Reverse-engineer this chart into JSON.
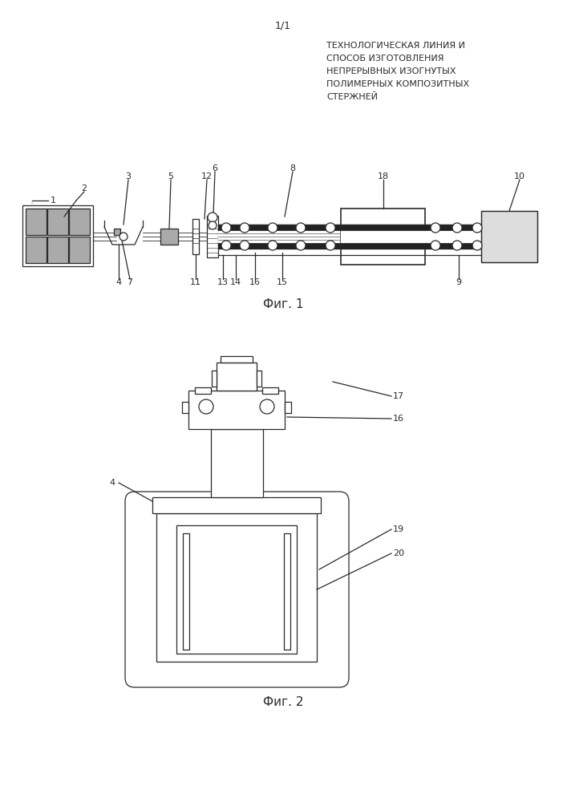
{
  "bg_color": "#ffffff",
  "line_color": "#2a2a2a",
  "gray_fill": "#aaaaaa",
  "dark_gray": "#888888",
  "page_label": "1/1",
  "title_lines": [
    "ТЕХНОЛОГИЧЕСКАЯ ЛИНИЯ И",
    "СПОСОБ ИЗГОТОВЛЕНИЯ",
    "НЕПРЕРЫВНЫХ ИЗОГНУТЫХ",
    "ПОЛИМЕРНЫХ КОМПОЗИТНЫХ",
    "СТЕРЖНЕЙ"
  ],
  "fig1_label": "Фиг. 1",
  "fig2_label": "Фиг. 2",
  "fig_width": 7.07,
  "fig_height": 10.0,
  "dpi": 100
}
